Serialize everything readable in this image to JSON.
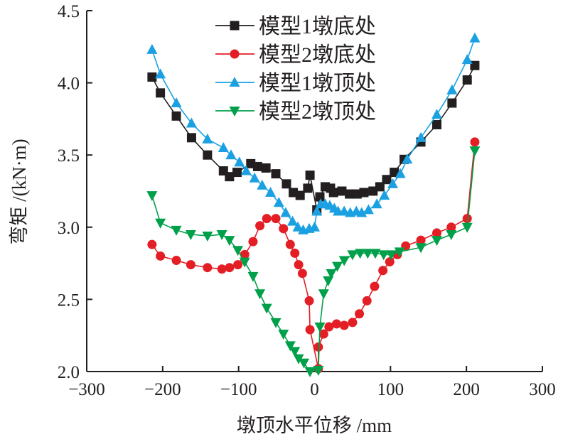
{
  "chart_data": {
    "type": "line",
    "title": "",
    "xlabel": "墩顶水平位移 /mm",
    "ylabel": "弯矩 /(kN·m)",
    "xlim": [
      -300,
      300
    ],
    "ylim": [
      2.0,
      4.5
    ],
    "xticks": [
      -300,
      -200,
      -100,
      0,
      100,
      200,
      300
    ],
    "xtick_labels": [
      "−300",
      "−200",
      "−100",
      "0",
      "100",
      "200",
      "300"
    ],
    "yticks": [
      2.0,
      2.5,
      3.0,
      3.5,
      4.0,
      4.5
    ],
    "ytick_labels": [
      "2.0",
      "2.5",
      "3.0",
      "3.5",
      "4.0",
      "4.5"
    ],
    "grid": false,
    "legend_position": "top-center",
    "series": [
      {
        "name": "模型1墩底处",
        "color": "#231f20",
        "marker": "square",
        "x": [
          -214,
          -203,
          -182,
          -162,
          -141,
          -120,
          -112,
          -102,
          -84,
          -75,
          -64,
          -51,
          -37,
          -28,
          -19,
          -9,
          -6,
          3,
          7,
          14,
          21,
          25,
          36,
          46,
          56,
          65,
          77,
          86,
          95,
          105,
          118,
          140,
          161,
          181,
          201,
          211
        ],
        "y": [
          4.04,
          3.93,
          3.77,
          3.62,
          3.5,
          3.39,
          3.35,
          3.38,
          3.44,
          3.42,
          3.41,
          3.37,
          3.3,
          3.24,
          3.22,
          3.27,
          3.36,
          3.12,
          3.21,
          3.28,
          3.27,
          3.24,
          3.25,
          3.23,
          3.23,
          3.24,
          3.25,
          3.28,
          3.33,
          3.38,
          3.47,
          3.59,
          3.71,
          3.86,
          4.02,
          4.12
        ]
      },
      {
        "name": "模型2墩底处",
        "color": "#e31e24",
        "marker": "circle",
        "x": [
          -214,
          -203,
          -182,
          -163,
          -141,
          -122,
          -112,
          -101,
          -92,
          -81,
          -72,
          -63,
          -51,
          -41,
          -32,
          -26,
          -21,
          -16,
          -7,
          -6,
          5,
          5,
          12,
          19,
          29,
          39,
          50,
          59,
          69,
          79,
          90,
          99,
          109,
          120,
          140,
          161,
          180,
          201,
          211
        ],
        "y": [
          2.88,
          2.8,
          2.77,
          2.74,
          2.72,
          2.71,
          2.72,
          2.74,
          2.81,
          2.9,
          3.01,
          3.06,
          3.06,
          2.99,
          2.88,
          2.82,
          2.74,
          2.68,
          2.49,
          2.29,
          2.02,
          2.17,
          2.26,
          2.31,
          2.33,
          2.32,
          2.34,
          2.4,
          2.49,
          2.59,
          2.7,
          2.76,
          2.81,
          2.87,
          2.91,
          2.96,
          3.0,
          3.06,
          3.59
        ]
      },
      {
        "name": "模型1墩顶处",
        "color": "#1ba1e2",
        "marker": "triangle-up",
        "x": [
          -214,
          -203,
          -182,
          -162,
          -141,
          -120,
          -110,
          -99,
          -90,
          -79,
          -69,
          -58,
          -47,
          -38,
          -29,
          -22,
          -15,
          -7,
          0,
          3,
          8,
          14,
          20,
          26,
          31,
          39,
          47,
          55,
          62,
          71,
          82,
          92,
          103,
          113,
          122,
          140,
          161,
          181,
          201,
          211
        ],
        "y": [
          4.23,
          4.06,
          3.86,
          3.72,
          3.61,
          3.55,
          3.5,
          3.45,
          3.39,
          3.34,
          3.29,
          3.24,
          3.17,
          3.1,
          3.04,
          3.0,
          2.98,
          2.99,
          3.0,
          3.11,
          3.16,
          3.16,
          3.15,
          3.13,
          3.11,
          3.11,
          3.1,
          3.11,
          3.1,
          3.12,
          3.16,
          3.22,
          3.3,
          3.37,
          3.47,
          3.62,
          3.78,
          3.95,
          4.16,
          4.31
        ]
      },
      {
        "name": "模型2墩顶处",
        "color": "#00a04a",
        "marker": "triangle-down",
        "x": [
          -214,
          -203,
          -182,
          -163,
          -141,
          -122,
          -112,
          -101,
          -92,
          -81,
          -72,
          -63,
          -51,
          -41,
          -32,
          -26,
          -21,
          -14,
          -6,
          5,
          7,
          12,
          18,
          22,
          30,
          39,
          50,
          60,
          70,
          80,
          91,
          101,
          112,
          140,
          161,
          180,
          201,
          211
        ],
        "y": [
          3.22,
          3.03,
          2.98,
          2.95,
          2.94,
          2.95,
          2.91,
          2.84,
          2.76,
          2.66,
          2.54,
          2.44,
          2.34,
          2.26,
          2.18,
          2.14,
          2.09,
          2.06,
          2.0,
          2.01,
          2.31,
          2.54,
          2.63,
          2.68,
          2.73,
          2.77,
          2.81,
          2.82,
          2.82,
          2.82,
          2.81,
          2.81,
          2.83,
          2.86,
          2.91,
          2.95,
          3.0,
          3.53
        ]
      }
    ]
  }
}
